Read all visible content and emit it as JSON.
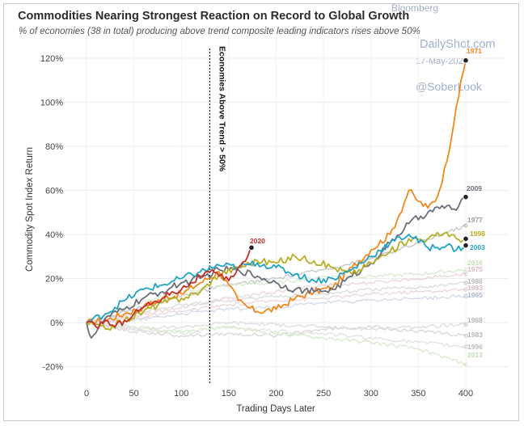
{
  "header": {
    "title": "Commodities Nearing Strongest Reaction on Record to Global Growth",
    "subtitle": "% of economies (38 in total) producing above trend composite leading indicators rises above 50%"
  },
  "watermark": {
    "source_fragment": "Bloomberg",
    "site": "DailyShot.com",
    "date": "17-May-202",
    "handle": "@SoberLook"
  },
  "chart_data": {
    "type": "line",
    "xlabel": "Trading Days Later",
    "ylabel": "Commodity Spot Index Return",
    "xlim": [
      -30,
      415
    ],
    "ylim": [
      -25,
      125
    ],
    "xticks": [
      0,
      50,
      100,
      150,
      200,
      250,
      300,
      350,
      400
    ],
    "yticks": [
      -20,
      0,
      20,
      40,
      60,
      80,
      100,
      120
    ],
    "ytick_labels": [
      "-20%",
      "0%",
      "20%",
      "40%",
      "60%",
      "80%",
      "100%",
      "120%"
    ],
    "grid": true,
    "vline": {
      "x": 130,
      "label": "Economies Above Trend > 50%"
    },
    "series": [
      {
        "name": "1971",
        "color": "#f2871c",
        "highlight": true,
        "endpoint_marker": true,
        "points": [
          [
            0,
            0
          ],
          [
            20,
            1
          ],
          [
            40,
            4
          ],
          [
            60,
            7
          ],
          [
            80,
            11
          ],
          [
            100,
            13
          ],
          [
            120,
            18
          ],
          [
            140,
            23
          ],
          [
            150,
            17
          ],
          [
            160,
            10
          ],
          [
            170,
            7
          ],
          [
            180,
            5
          ],
          [
            200,
            6
          ],
          [
            220,
            11
          ],
          [
            240,
            14
          ],
          [
            260,
            16
          ],
          [
            280,
            25
          ],
          [
            300,
            33
          ],
          [
            320,
            40
          ],
          [
            330,
            49
          ],
          [
            340,
            60
          ],
          [
            350,
            55
          ],
          [
            360,
            52
          ],
          [
            370,
            57
          ],
          [
            380,
            73
          ],
          [
            390,
            98
          ],
          [
            400,
            119
          ]
        ]
      },
      {
        "name": "2009",
        "color": "#6b6f7a",
        "highlight": true,
        "endpoint_marker": true,
        "points": [
          [
            0,
            0
          ],
          [
            5,
            -7
          ],
          [
            20,
            2
          ],
          [
            40,
            6
          ],
          [
            60,
            11
          ],
          [
            80,
            14
          ],
          [
            100,
            18
          ],
          [
            120,
            20
          ],
          [
            140,
            24
          ],
          [
            160,
            24
          ],
          [
            180,
            21
          ],
          [
            200,
            18
          ],
          [
            220,
            15
          ],
          [
            240,
            14
          ],
          [
            260,
            15
          ],
          [
            280,
            21
          ],
          [
            300,
            27
          ],
          [
            320,
            36
          ],
          [
            340,
            45
          ],
          [
            360,
            50
          ],
          [
            380,
            53
          ],
          [
            390,
            51
          ],
          [
            400,
            57
          ]
        ]
      },
      {
        "name": "1998",
        "color": "#b7ae25",
        "highlight": true,
        "endpoint_marker": true,
        "points": [
          [
            0,
            0
          ],
          [
            20,
            -3
          ],
          [
            40,
            1
          ],
          [
            60,
            5
          ],
          [
            80,
            9
          ],
          [
            100,
            11
          ],
          [
            120,
            14
          ],
          [
            140,
            22
          ],
          [
            160,
            25
          ],
          [
            180,
            28
          ],
          [
            200,
            27
          ],
          [
            220,
            30
          ],
          [
            240,
            28
          ],
          [
            260,
            25
          ],
          [
            280,
            22
          ],
          [
            300,
            27
          ],
          [
            320,
            32
          ],
          [
            340,
            38
          ],
          [
            360,
            38
          ],
          [
            380,
            41
          ],
          [
            390,
            38
          ],
          [
            400,
            38
          ]
        ]
      },
      {
        "name": "2003",
        "color": "#1fa3c7",
        "highlight": true,
        "endpoint_marker": true,
        "points": [
          [
            0,
            0
          ],
          [
            20,
            4
          ],
          [
            40,
            10
          ],
          [
            60,
            15
          ],
          [
            80,
            17
          ],
          [
            100,
            20
          ],
          [
            120,
            23
          ],
          [
            140,
            26
          ],
          [
            160,
            25
          ],
          [
            180,
            27
          ],
          [
            200,
            25
          ],
          [
            220,
            22
          ],
          [
            240,
            19
          ],
          [
            260,
            20
          ],
          [
            280,
            24
          ],
          [
            300,
            30
          ],
          [
            320,
            36
          ],
          [
            340,
            40
          ],
          [
            360,
            34
          ],
          [
            380,
            35
          ],
          [
            390,
            33
          ],
          [
            400,
            35
          ]
        ]
      },
      {
        "name": "2020",
        "color": "#c62e2a",
        "highlight": true,
        "endpoint_marker": true,
        "points": [
          [
            0,
            0
          ],
          [
            10,
            -2
          ],
          [
            20,
            1
          ],
          [
            30,
            -2
          ],
          [
            40,
            1
          ],
          [
            50,
            4
          ],
          [
            60,
            7
          ],
          [
            70,
            9
          ],
          [
            80,
            11
          ],
          [
            90,
            14
          ],
          [
            100,
            15
          ],
          [
            110,
            18
          ],
          [
            120,
            21
          ],
          [
            130,
            23
          ],
          [
            140,
            21
          ],
          [
            150,
            19
          ],
          [
            160,
            25
          ],
          [
            170,
            30
          ],
          [
            174,
            34
          ]
        ]
      },
      {
        "name": "1977",
        "color": "#c7c7c7",
        "highlight": false,
        "label_color": "#9b9b9b",
        "points": [
          [
            0,
            0
          ],
          [
            50,
            6
          ],
          [
            100,
            12
          ],
          [
            150,
            17
          ],
          [
            200,
            20
          ],
          [
            250,
            24
          ],
          [
            300,
            29
          ],
          [
            350,
            36
          ],
          [
            380,
            41
          ],
          [
            400,
            44
          ]
        ]
      },
      {
        "name": "2016",
        "color": "#d9ead0",
        "highlight": false,
        "label_color": "#c4dcb4",
        "points": [
          [
            0,
            0
          ],
          [
            50,
            8
          ],
          [
            100,
            14
          ],
          [
            150,
            17
          ],
          [
            200,
            18
          ],
          [
            250,
            21
          ],
          [
            300,
            21
          ],
          [
            350,
            22
          ],
          [
            400,
            24
          ]
        ]
      },
      {
        "name": "1975",
        "color": "#ead7d9",
        "highlight": false,
        "label_color": "#d8b9be",
        "points": [
          [
            0,
            0
          ],
          [
            50,
            3
          ],
          [
            100,
            7
          ],
          [
            150,
            11
          ],
          [
            200,
            14
          ],
          [
            250,
            17
          ],
          [
            300,
            18
          ],
          [
            350,
            20
          ],
          [
            400,
            22
          ]
        ]
      },
      {
        "name": "1986",
        "color": "#dddddd",
        "highlight": false,
        "label_color": "#b8b8b8",
        "points": [
          [
            0,
            0
          ],
          [
            50,
            4
          ],
          [
            100,
            8
          ],
          [
            150,
            10
          ],
          [
            200,
            12
          ],
          [
            250,
            13
          ],
          [
            300,
            15
          ],
          [
            350,
            16
          ],
          [
            400,
            18
          ]
        ]
      },
      {
        "name": "1993",
        "color": "#ead7e0",
        "highlight": false,
        "label_color": "#d5b7c6",
        "points": [
          [
            0,
            0
          ],
          [
            50,
            2
          ],
          [
            100,
            5
          ],
          [
            150,
            8
          ],
          [
            200,
            10
          ],
          [
            250,
            11
          ],
          [
            300,
            13
          ],
          [
            350,
            14
          ],
          [
            400,
            15
          ]
        ]
      },
      {
        "name": "1965",
        "color": "#d4dbe8",
        "highlight": false,
        "label_color": "#aab6cc",
        "points": [
          [
            0,
            0
          ],
          [
            50,
            1
          ],
          [
            100,
            4
          ],
          [
            150,
            6
          ],
          [
            200,
            7
          ],
          [
            250,
            9
          ],
          [
            300,
            10
          ],
          [
            350,
            11
          ],
          [
            400,
            12
          ]
        ]
      },
      {
        "name": "1968",
        "color": "#dedede",
        "highlight": false,
        "label_color": "#b5b5b5",
        "points": [
          [
            0,
            0
          ],
          [
            50,
            -3
          ],
          [
            100,
            -2
          ],
          [
            150,
            0
          ],
          [
            200,
            -1
          ],
          [
            250,
            -2
          ],
          [
            300,
            -3
          ],
          [
            350,
            -2
          ],
          [
            400,
            -1
          ]
        ]
      },
      {
        "name": "1983",
        "color": "#d9d9d9",
        "highlight": false,
        "label_color": "#b5b5b5",
        "points": [
          [
            0,
            0
          ],
          [
            50,
            -4
          ],
          [
            100,
            -6
          ],
          [
            150,
            -5
          ],
          [
            200,
            -6
          ],
          [
            250,
            -3
          ],
          [
            300,
            -2
          ],
          [
            350,
            -4
          ],
          [
            400,
            -6
          ]
        ]
      },
      {
        "name": "1996",
        "color": "#e3e3e3",
        "highlight": false,
        "label_color": "#bdbdbd",
        "points": [
          [
            0,
            0
          ],
          [
            50,
            -3
          ],
          [
            100,
            -5
          ],
          [
            150,
            -2
          ],
          [
            200,
            -4
          ],
          [
            250,
            -5
          ],
          [
            300,
            -7
          ],
          [
            350,
            -9
          ],
          [
            400,
            -11
          ]
        ]
      },
      {
        "name": "2013",
        "color": "#d9ead0",
        "highlight": false,
        "label_color": "#c4dcb4",
        "points": [
          [
            0,
            0
          ],
          [
            50,
            -2
          ],
          [
            100,
            -4
          ],
          [
            150,
            -2
          ],
          [
            200,
            -5
          ],
          [
            250,
            -7
          ],
          [
            300,
            -9
          ],
          [
            350,
            -12
          ],
          [
            400,
            -19
          ]
        ]
      }
    ]
  }
}
